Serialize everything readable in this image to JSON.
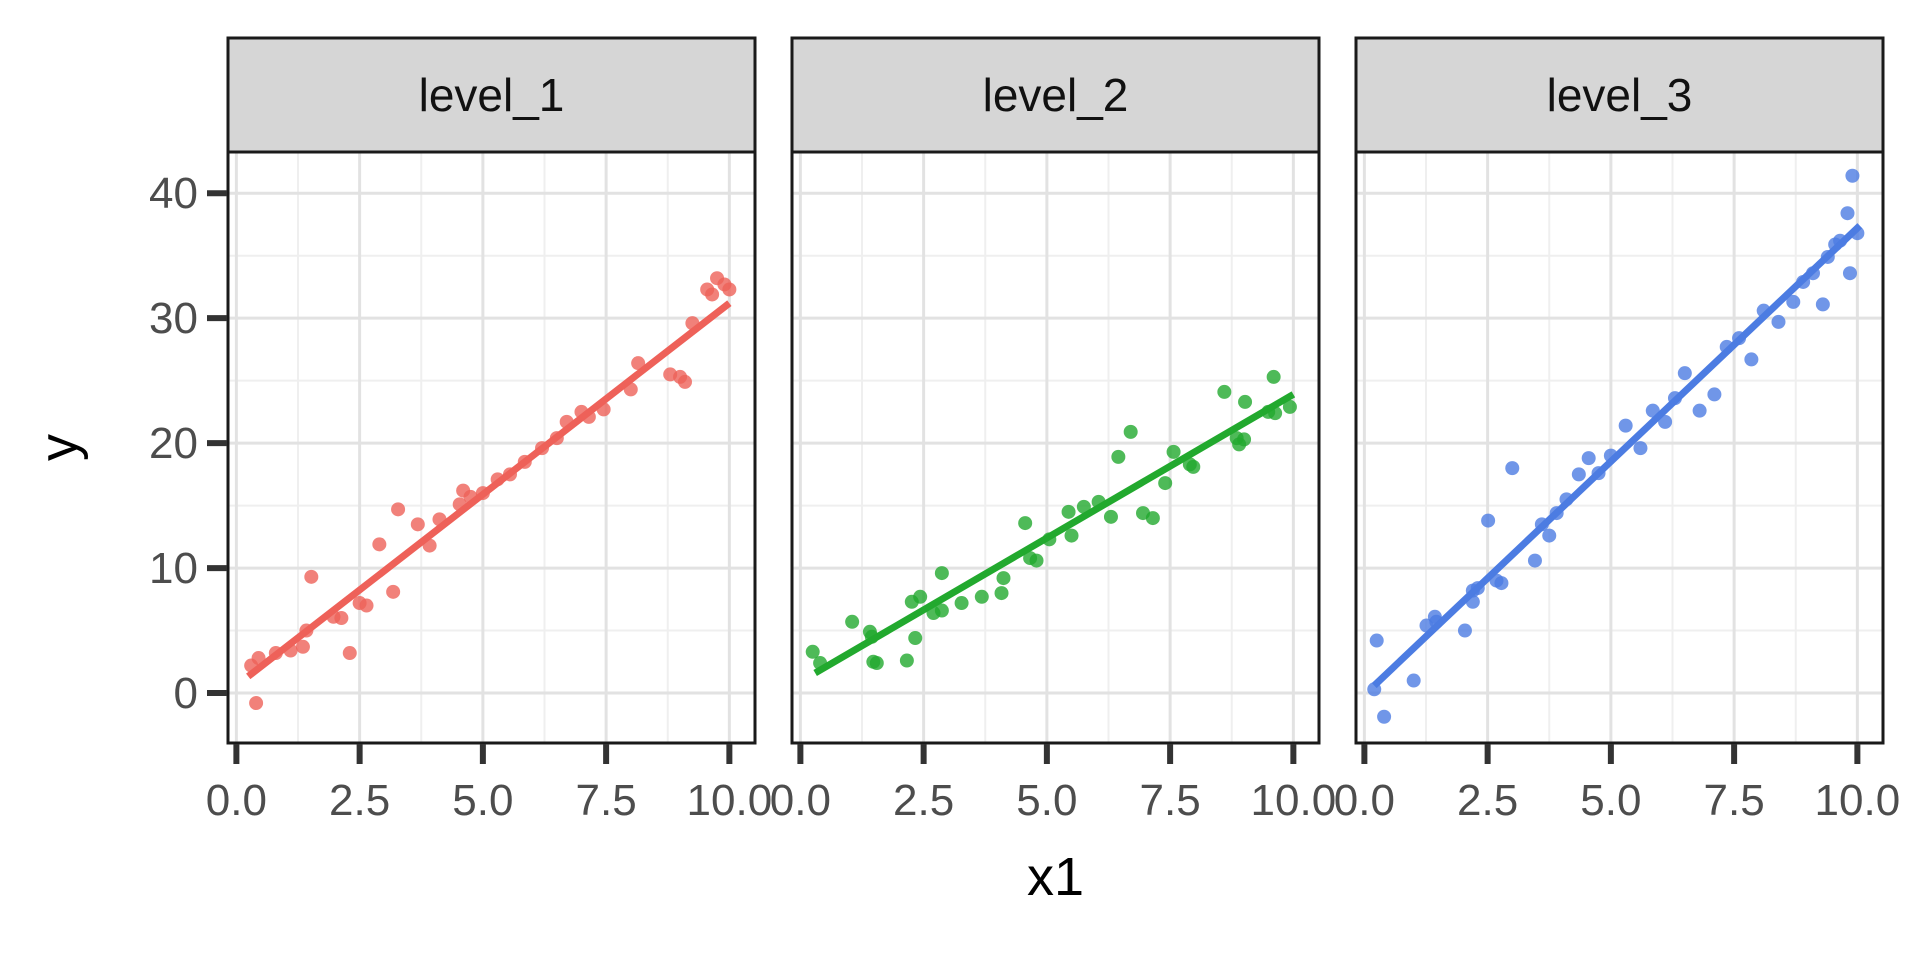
{
  "chart_data": {
    "type": "scatter",
    "title": "",
    "xlabel": "x1",
    "ylabel": "y",
    "x_ticks": [
      0,
      2.5,
      5,
      7.5,
      10
    ],
    "x_tick_labels": [
      "0.0",
      "2.5",
      "5.0",
      "7.5",
      "10.0"
    ],
    "y_ticks": [
      0,
      10,
      20,
      30,
      40
    ],
    "y_tick_labels": [
      "0",
      "10",
      "20",
      "30",
      "40"
    ],
    "x_minor_breaks": [
      1.25,
      3.75,
      6.25,
      8.75
    ],
    "y_minor_breaks": [
      5,
      15,
      25,
      35
    ],
    "xlim": [
      -0.17,
      10.52
    ],
    "ylim": [
      -4.0,
      43.3
    ],
    "grid": true,
    "legend": "none",
    "facet_variable_levels": [
      "level_1",
      "level_2",
      "level_3"
    ],
    "panels": [
      {
        "label": "level_1",
        "color": "#EE6159",
        "smooth_line": {
          "x": [
            0.24,
            10.0
          ],
          "y": [
            1.33,
            31.2
          ]
        },
        "points": [
          [
            0.3,
            2.2
          ],
          [
            0.45,
            2.8
          ],
          [
            0.4,
            -0.8
          ],
          [
            0.8,
            3.2
          ],
          [
            1.1,
            3.4
          ],
          [
            1.35,
            3.7
          ],
          [
            1.42,
            5.0
          ],
          [
            1.52,
            9.3
          ],
          [
            1.97,
            6.1
          ],
          [
            2.13,
            6.0
          ],
          [
            2.3,
            3.2
          ],
          [
            2.5,
            7.2
          ],
          [
            2.64,
            7.0
          ],
          [
            2.9,
            11.9
          ],
          [
            3.18,
            8.1
          ],
          [
            3.28,
            14.7
          ],
          [
            3.68,
            13.5
          ],
          [
            3.92,
            11.8
          ],
          [
            4.12,
            13.9
          ],
          [
            4.53,
            15.1
          ],
          [
            4.6,
            16.2
          ],
          [
            4.75,
            15.7
          ],
          [
            5.0,
            16.0
          ],
          [
            5.3,
            17.1
          ],
          [
            5.55,
            17.5
          ],
          [
            5.85,
            18.5
          ],
          [
            6.2,
            19.6
          ],
          [
            6.5,
            20.4
          ],
          [
            6.7,
            21.7
          ],
          [
            7.0,
            22.5
          ],
          [
            7.15,
            22.1
          ],
          [
            7.45,
            22.7
          ],
          [
            8.0,
            24.3
          ],
          [
            8.15,
            26.4
          ],
          [
            8.8,
            25.5
          ],
          [
            9.0,
            25.3
          ],
          [
            9.1,
            24.9
          ],
          [
            9.25,
            29.6
          ],
          [
            9.55,
            32.3
          ],
          [
            9.65,
            31.9
          ],
          [
            9.75,
            33.2
          ],
          [
            9.9,
            32.7
          ],
          [
            10.0,
            32.3
          ]
        ]
      },
      {
        "label": "level_2",
        "color": "#22A92E",
        "smooth_line": {
          "x": [
            0.3,
            10.0
          ],
          "y": [
            1.6,
            23.9
          ]
        },
        "points": [
          [
            0.25,
            3.3
          ],
          [
            0.4,
            2.4
          ],
          [
            1.05,
            5.7
          ],
          [
            1.41,
            4.9
          ],
          [
            1.45,
            4.5
          ],
          [
            1.48,
            2.5
          ],
          [
            1.55,
            2.4
          ],
          [
            2.16,
            2.6
          ],
          [
            2.26,
            7.3
          ],
          [
            2.33,
            4.4
          ],
          [
            2.43,
            7.7
          ],
          [
            2.7,
            6.4
          ],
          [
            2.87,
            6.6
          ],
          [
            2.87,
            9.6
          ],
          [
            3.27,
            7.2
          ],
          [
            3.68,
            7.7
          ],
          [
            4.08,
            8.0
          ],
          [
            4.12,
            9.2
          ],
          [
            4.56,
            13.6
          ],
          [
            4.66,
            10.8
          ],
          [
            4.79,
            10.6
          ],
          [
            5.05,
            12.3
          ],
          [
            5.44,
            14.5
          ],
          [
            5.5,
            12.6
          ],
          [
            5.75,
            14.9
          ],
          [
            6.05,
            15.3
          ],
          [
            6.3,
            14.1
          ],
          [
            6.45,
            18.9
          ],
          [
            6.7,
            20.9
          ],
          [
            6.95,
            14.4
          ],
          [
            7.15,
            14.0
          ],
          [
            7.4,
            16.8
          ],
          [
            7.57,
            19.3
          ],
          [
            7.9,
            18.3
          ],
          [
            7.97,
            18.1
          ],
          [
            8.6,
            24.1
          ],
          [
            8.85,
            20.4
          ],
          [
            8.9,
            19.9
          ],
          [
            9.0,
            20.3
          ],
          [
            9.02,
            23.3
          ],
          [
            9.49,
            22.5
          ],
          [
            9.6,
            25.3
          ],
          [
            9.63,
            22.4
          ],
          [
            9.93,
            22.9
          ]
        ]
      },
      {
        "label": "level_3",
        "color": "#4C7CE2",
        "smooth_line": {
          "x": [
            0.2,
            10.05
          ],
          "y": [
            0.6,
            37.4
          ]
        },
        "points": [
          [
            0.2,
            0.3
          ],
          [
            0.25,
            4.2
          ],
          [
            0.4,
            -1.9
          ],
          [
            1.0,
            1.0
          ],
          [
            1.26,
            5.4
          ],
          [
            1.43,
            6.1
          ],
          [
            1.46,
            5.7
          ],
          [
            2.04,
            5.0
          ],
          [
            2.2,
            8.2
          ],
          [
            2.3,
            8.4
          ],
          [
            2.2,
            7.3
          ],
          [
            2.51,
            13.8
          ],
          [
            2.68,
            9.0
          ],
          [
            2.78,
            8.8
          ],
          [
            3.0,
            18.0
          ],
          [
            3.46,
            10.6
          ],
          [
            3.6,
            13.5
          ],
          [
            3.75,
            12.6
          ],
          [
            3.9,
            14.4
          ],
          [
            4.1,
            15.5
          ],
          [
            4.35,
            17.5
          ],
          [
            4.55,
            18.8
          ],
          [
            4.75,
            17.6
          ],
          [
            5.0,
            19.0
          ],
          [
            5.3,
            21.4
          ],
          [
            5.6,
            19.6
          ],
          [
            5.85,
            22.6
          ],
          [
            6.1,
            21.7
          ],
          [
            6.3,
            23.6
          ],
          [
            6.5,
            25.6
          ],
          [
            6.8,
            22.6
          ],
          [
            7.1,
            23.9
          ],
          [
            7.35,
            27.7
          ],
          [
            7.6,
            28.4
          ],
          [
            7.85,
            26.7
          ],
          [
            8.1,
            30.6
          ],
          [
            8.4,
            29.7
          ],
          [
            8.7,
            31.3
          ],
          [
            8.9,
            32.9
          ],
          [
            9.1,
            33.6
          ],
          [
            9.3,
            31.1
          ],
          [
            9.4,
            34.9
          ],
          [
            9.55,
            35.9
          ],
          [
            9.65,
            36.2
          ],
          [
            9.8,
            38.4
          ],
          [
            9.85,
            33.6
          ],
          [
            9.9,
            41.4
          ],
          [
            10.0,
            36.8
          ]
        ]
      }
    ],
    "style_colors": {
      "strip_fill": "#D6D6D6",
      "strip_text": "#111111",
      "panel_background": "#FFFFFF",
      "panel_border": "#1A1A1A",
      "grid_major": "#E2E2E2",
      "grid_minor": "#EFEFEF",
      "tick_color": "#333333",
      "tick_label_color": "#4D4D4D",
      "axis_title_color": "#000000"
    }
  }
}
